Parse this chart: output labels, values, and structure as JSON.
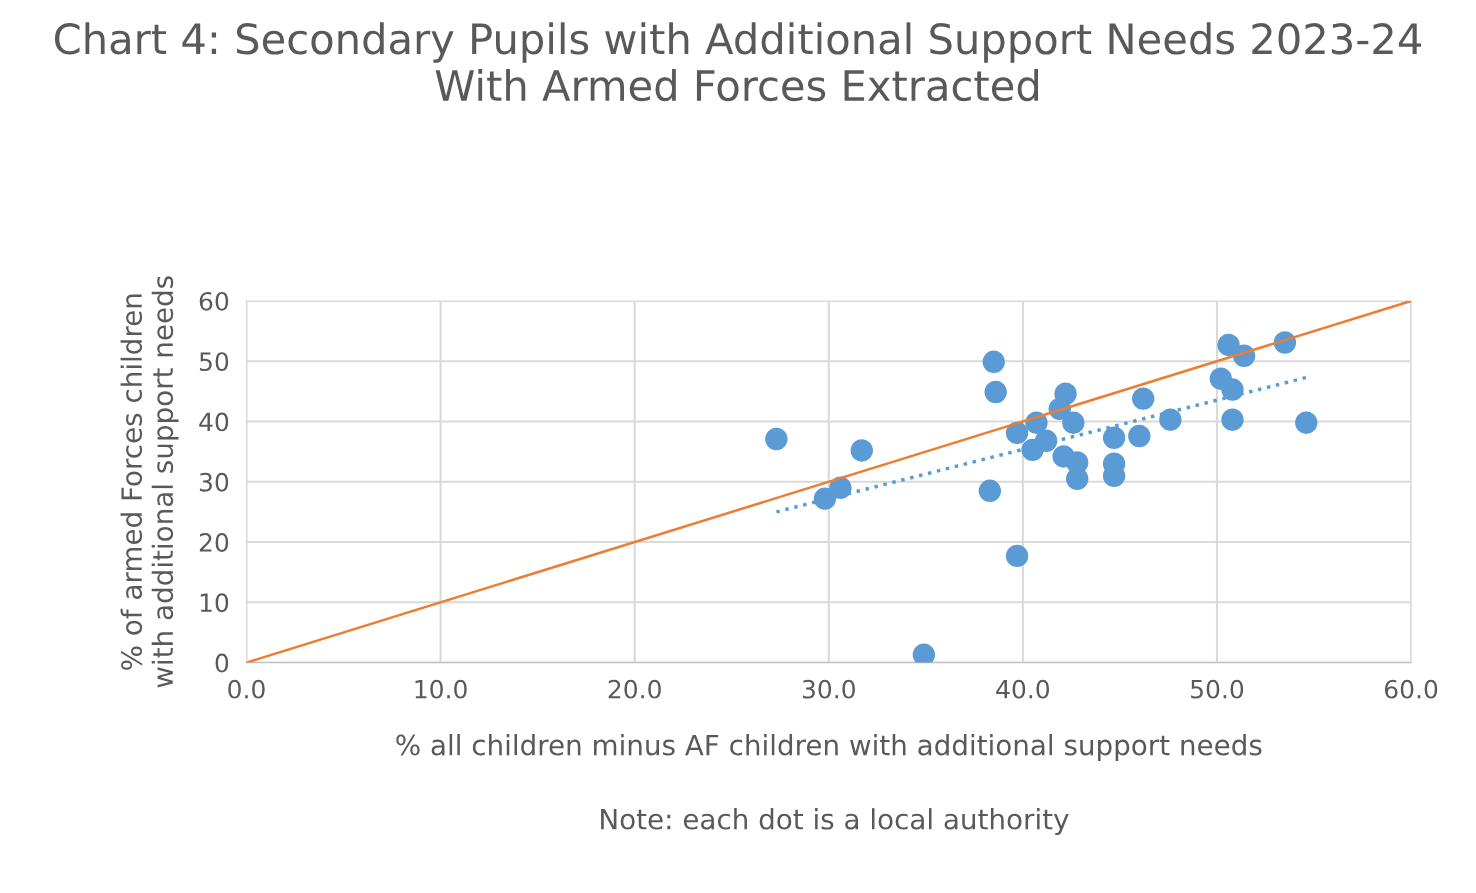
{
  "chart_data": {
    "type": "scatter",
    "title": "Chart 4: Secondary Pupils with Additional Support Needs 2023-24 With Armed Forces Extracted",
    "xlabel": "% all children minus AF children with additional support needs",
    "ylabel": "% of armed Forces children with additional support needs",
    "annotations": [
      "Note: each dot is a local authority"
    ],
    "xlim": [
      0,
      60
    ],
    "ylim": [
      0,
      60
    ],
    "xticks": [
      {
        "value": 0,
        "label": "0.0"
      },
      {
        "value": 10,
        "label": "10.0"
      },
      {
        "value": 20,
        "label": "20.0"
      },
      {
        "value": 30,
        "label": "30.0"
      },
      {
        "value": 40,
        "label": "40.0"
      },
      {
        "value": 50,
        "label": "50.0"
      },
      {
        "value": 60,
        "label": "60.0"
      }
    ],
    "yticks": [
      0,
      10,
      20,
      30,
      40,
      50,
      60
    ],
    "grid": true,
    "legend": false,
    "series": [
      {
        "color": "#5b9bd5",
        "marker": "circle",
        "x": [
          27.3,
          29.8,
          30.6,
          31.7,
          34.9,
          38.3,
          38.5,
          38.6,
          39.7,
          39.7,
          40.7,
          41.2,
          40.5,
          42.2,
          41.9,
          42.6,
          42.1,
          42.8,
          42.8,
          44.7,
          44.7,
          44.7,
          46.0,
          46.2,
          47.6,
          50.2,
          50.8,
          50.8,
          50.6,
          51.4,
          53.5,
          54.6
        ],
        "values": [
          37.1,
          27.2,
          29.0,
          35.2,
          1.3,
          28.5,
          49.9,
          44.9,
          17.7,
          38.1,
          39.8,
          36.8,
          35.3,
          44.6,
          42.1,
          39.8,
          34.2,
          33.2,
          30.5,
          37.3,
          33.0,
          31.0,
          37.6,
          43.8,
          40.3,
          47.1,
          45.3,
          40.3,
          52.7,
          50.9,
          53.1,
          39.8
        ]
      },
      {
        "type": "line",
        "color": "#ed7d31",
        "line_style": "solid",
        "x": [
          0,
          60
        ],
        "values": [
          0,
          60
        ]
      },
      {
        "type": "line",
        "color": "#5b9bd5",
        "line_style": "dotted",
        "x": [
          27.3,
          54.6
        ],
        "values": [
          25.0,
          47.3
        ]
      }
    ]
  }
}
